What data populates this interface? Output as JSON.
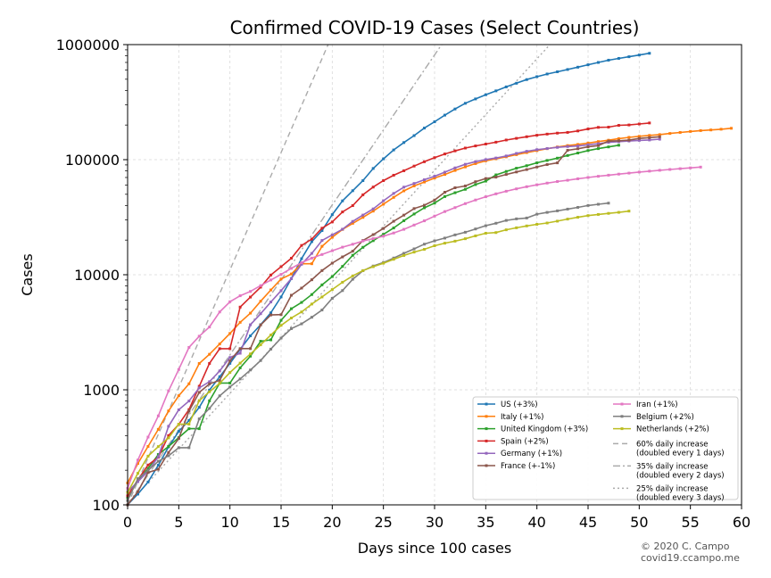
{
  "chart_data": {
    "type": "line",
    "title": "Confirmed COVID-19 Cases (Select Countries)",
    "xlabel": "Days since 100 cases",
    "ylabel": "Cases",
    "xlim": [
      0,
      60
    ],
    "ylim": [
      100,
      1000000
    ],
    "yscale": "log",
    "grid": true,
    "legend_position": "lower-right",
    "xticks": [
      "0",
      "5",
      "10",
      "15",
      "20",
      "25",
      "30",
      "35",
      "40",
      "45",
      "50",
      "55",
      "60"
    ],
    "yticks": [
      "100",
      "1000",
      "10000",
      "100000",
      "1000000"
    ],
    "series": [
      {
        "name": "US (+3%)",
        "color": "#1f77b4",
        "y": [
          100,
          124,
          158,
          221,
          319,
          435,
          541,
          704,
          994,
          1301,
          1697,
          2247,
          2943,
          3680,
          4663,
          6411,
          9259,
          13789,
          19383,
          24207,
          33276,
          43847,
          53740,
          65778,
          83836,
          101657,
          121478,
          140886,
          161807,
          188172,
          213372,
          243762,
          275586,
          308853,
          337072,
          366667,
          396223,
          429052,
          461437,
          496535,
          526396,
          555313,
          580619,
          607670,
          636350,
          667801,
          699706,
          732197,
          758809,
          784326,
          811865,
          840351
        ]
      },
      {
        "name": "Italy (+1%)",
        "color": "#ff7f0e",
        "y": [
          155,
          229,
          322,
          453,
          655,
          888,
          1128,
          1694,
          2036,
          2502,
          3089,
          3858,
          4636,
          5883,
          7375,
          9172,
          10149,
          12462,
          12462,
          17660,
          21157,
          24747,
          27980,
          31506,
          35713,
          41035,
          47021,
          53578,
          59138,
          63927,
          69176,
          74386,
          80589,
          86498,
          92472,
          97689,
          101739,
          105792,
          110574,
          115242,
          119827,
          124632,
          128948,
          132547,
          135586,
          139422,
          143626,
          147577,
          152271,
          156363,
          159516,
          162488,
          165155,
          168941,
          172434,
          175925,
          178972,
          181228,
          183957,
          187327
        ]
      },
      {
        "name": "United Kingdom (+3%)",
        "color": "#2ca02c",
        "y": [
          116,
          164,
          207,
          274,
          322,
          384,
          459,
          459,
          802,
          1144,
          1145,
          1551,
          1960,
          2642,
          2716,
          4014,
          5067,
          5745,
          6726,
          8164,
          9640,
          11812,
          14745,
          17312,
          19780,
          22453,
          25481,
          29474,
          33718,
          38168,
          41903,
          47806,
          51608,
          55242,
          60733,
          65077,
          73758,
          78991,
          84279,
          88621,
          93873,
          98476,
          103093,
          108692,
          114217,
          120067,
          124743,
          129044,
          133495
        ]
      },
      {
        "name": "Spain (+2%)",
        "color": "#d62728",
        "y": [
          120,
          165,
          222,
          259,
          400,
          500,
          673,
          1073,
          1695,
          2277,
          2277,
          5232,
          6391,
          7798,
          9942,
          11748,
          13910,
          17963,
          20410,
          25374,
          28768,
          35136,
          39885,
          49515,
          57786,
          65719,
          73235,
          80110,
          87956,
          95923,
          104118,
          112065,
          119199,
          126168,
          131646,
          136675,
          141942,
          148220,
          153222,
          158273,
          163027,
          166831,
          170099,
          172541,
          177644,
          184948,
          190839,
          191726,
          198674,
          200210,
          204178,
          208389
        ]
      },
      {
        "name": "Germany (+1%)",
        "color": "#9467bd",
        "y": [
          130,
          159,
          196,
          262,
          482,
          670,
          799,
          1040,
          1176,
          1457,
          1908,
          2078,
          3675,
          4585,
          5795,
          7272,
          9257,
          12327,
          15320,
          19848,
          22213,
          24873,
          29056,
          32986,
          37323,
          43938,
          50871,
          57695,
          62095,
          66885,
          71808,
          77872,
          84794,
          91159,
          96092,
          100123,
          103374,
          107663,
          113296,
          118181,
          122171,
          124908,
          127854,
          130072,
          131359,
          134753,
          137698,
          141397,
          143342,
          145184,
          147065,
          148291,
          150648
        ]
      },
      {
        "name": "France (+-1%)",
        "color": "#8c564b",
        "y": [
          100,
          130,
          191,
          204,
          285,
          377,
          653,
          949,
          1126,
          1209,
          1784,
          2281,
          2281,
          3661,
          4469,
          4499,
          6633,
          7652,
          9043,
          10871,
          12612,
          14282,
          16018,
          19856,
          22304,
          25233,
          29155,
          32964,
          37575,
          40174,
          44550,
          52128,
          56989,
          59105,
          64338,
          68605,
          70478,
          74390,
          78167,
          82048,
          86334,
          90676,
          93790,
          120633,
          124298,
          129257,
          132473,
          144944,
          146075,
          147863,
          152978,
          155383,
          158168
        ]
      },
      {
        "name": "Iran (+1%)",
        "color": "#e377c2",
        "y": [
          139,
          245,
          388,
          593,
          978,
          1501,
          2336,
          2922,
          3513,
          4747,
          5823,
          6566,
          7161,
          8042,
          9000,
          10075,
          11364,
          12729,
          13938,
          14991,
          16169,
          17361,
          18407,
          19644,
          20610,
          21638,
          23049,
          24811,
          27017,
          29406,
          32332,
          35408,
          38309,
          41495,
          44605,
          47593,
          50468,
          53183,
          55743,
          58226,
          60500,
          62589,
          64586,
          66220,
          68192,
          70029,
          71686,
          73303,
          74877,
          76389,
          77995,
          79494,
          80868,
          82211,
          83505,
          84802,
          86179
        ]
      },
      {
        "name": "Belgium (+2%)",
        "color": "#7f7f7f",
        "y": [
          109,
          169,
          200,
          239,
          267,
          314,
          314,
          559,
          689,
          886,
          1058,
          1243,
          1486,
          1795,
          2257,
          2815,
          3401,
          3743,
          4269,
          4937,
          6235,
          7284,
          9134,
          10836,
          11899,
          12775,
          13964,
          15348,
          16770,
          18431,
          19691,
          20814,
          22194,
          23403,
          24983,
          26667,
          28018,
          29647,
          30589,
          31119,
          33573,
          34809,
          35903,
          37183,
          38496,
          39983,
          40956,
          41889
        ]
      },
      {
        "name": "Netherlands (+2%)",
        "color": "#bcbd22",
        "y": [
          128,
          188,
          265,
          321,
          382,
          503,
          503,
          806,
          962,
          1138,
          1413,
          1705,
          2051,
          2460,
          2994,
          3631,
          4204,
          4749,
          5560,
          6412,
          7431,
          8603,
          9762,
          10866,
          11750,
          12595,
          13614,
          14697,
          15723,
          16627,
          17851,
          18803,
          19580,
          20549,
          21762,
          22945,
          23249,
          24571,
          25587,
          26551,
          27419,
          28153,
          29214,
          30449,
          31589,
          32655,
          33405,
          34134,
          34842,
          35729
        ]
      }
    ],
    "reference_lines": [
      {
        "name": "60% daily increase",
        "note": "(doubled every 1 days)",
        "rate": 0.6,
        "style": "dashed",
        "color": "#aaaaaa"
      },
      {
        "name": "35% daily increase",
        "note": "(doubled every 2 days)",
        "rate": 0.35,
        "style": "dashdot",
        "color": "#aaaaaa"
      },
      {
        "name": "25% daily increase",
        "note": "(doubled every 3 days)",
        "rate": 0.25,
        "style": "dotted",
        "color": "#aaaaaa"
      }
    ]
  },
  "credit": {
    "line1": "© 2020 C. Campo",
    "line2": "covid19.ccampo.me"
  }
}
